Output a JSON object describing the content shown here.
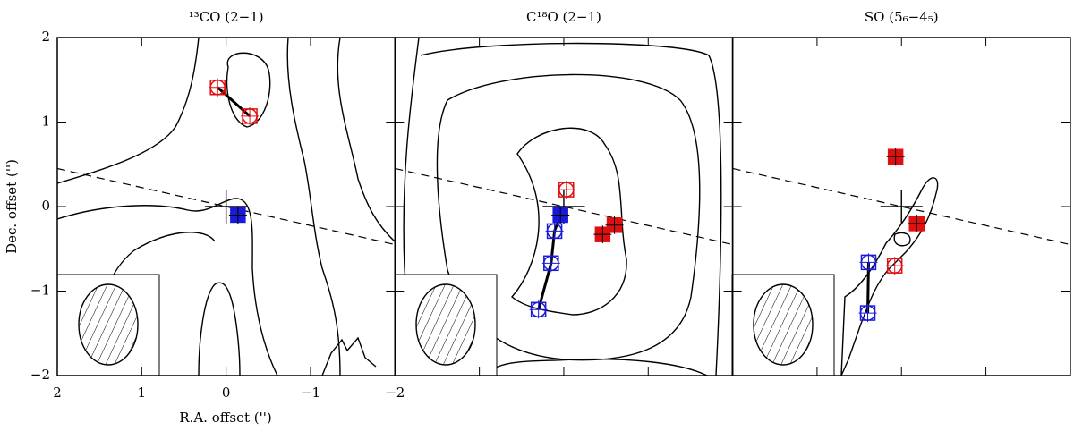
{
  "axes": {
    "xlabel": "R.A. offset ('')",
    "ylabel": "Dec. offset ('')",
    "xlim": [
      2,
      -2
    ],
    "ylim": [
      -2,
      2
    ],
    "xticks": [
      2,
      1,
      0,
      {
        "value": -1,
        "label": "−1"
      },
      {
        "value": -2,
        "label": "−2"
      }
    ],
    "yticks": [
      2,
      1,
      0,
      {
        "value": -1,
        "label": "−1"
      },
      {
        "value": -2,
        "label": "−2"
      }
    ]
  },
  "chart_data": [
    {
      "type": "scatter",
      "title": "¹³CO (2−1)",
      "series": [
        {
          "color": "#e01010",
          "x": [
            0.1,
            -0.28
          ],
          "y": [
            1.41,
            1.07
          ],
          "filled": [
            false,
            false
          ],
          "connect": true
        },
        {
          "color": "#1a1adb",
          "x": [
            -0.14
          ],
          "y": [
            -0.1
          ],
          "filled": [
            true
          ],
          "connect": false
        }
      ]
    },
    {
      "type": "scatter",
      "title": "C¹⁸O (2−1)",
      "series": [
        {
          "color": "#e01010",
          "x": [
            -0.03
          ],
          "y": [
            0.2
          ],
          "filled": [
            false
          ],
          "connect": false
        },
        {
          "color": "#e01010",
          "x": [
            -0.6,
            -0.46
          ],
          "y": [
            -0.22,
            -0.33
          ],
          "filled": [
            true,
            true
          ],
          "connect": true
        },
        {
          "color": "#1a1adb",
          "x": [
            0.04,
            0.11,
            0.15,
            0.3
          ],
          "y": [
            -0.1,
            -0.29,
            -0.67,
            -1.22
          ],
          "filled": [
            true,
            false,
            false,
            false
          ],
          "connect": true
        }
      ]
    },
    {
      "type": "scatter",
      "title": "SO (5₆−4₅)",
      "series": [
        {
          "color": "#e01010",
          "x": [
            0.07,
            -0.18,
            0.08
          ],
          "y": [
            0.59,
            -0.2,
            -0.7
          ],
          "filled": [
            true,
            true,
            false
          ],
          "connect": false
        },
        {
          "color": "#1a1adb",
          "x": [
            0.39,
            0.4
          ],
          "y": [
            -0.66,
            -1.26
          ],
          "filled": [
            false,
            false
          ],
          "connect": true
        }
      ]
    }
  ]
}
